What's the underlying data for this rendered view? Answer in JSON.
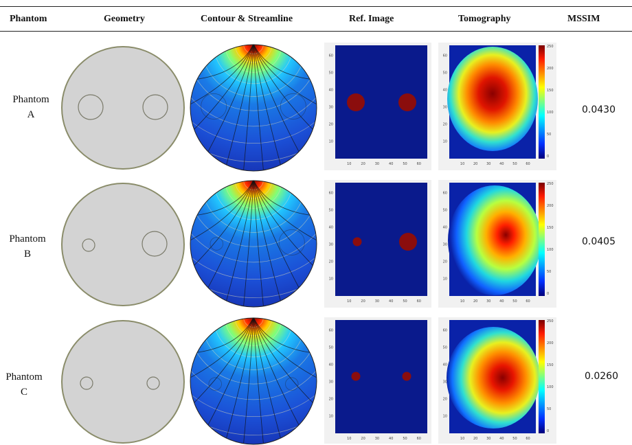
{
  "table": {
    "headers": [
      "Phantom",
      "Geometry",
      "Contour & Streamline",
      "Ref. Image",
      "Tomography",
      "MSSIM"
    ],
    "rows": [
      {
        "phantom_line1": "Phantom",
        "phantom_line2": "A",
        "mssim": "0.0430"
      },
      {
        "phantom_line1": "Phantom",
        "phantom_line2": "B",
        "mssim": "0.0405"
      },
      {
        "phantom_line1": "Phantom",
        "phantom_line2": "C",
        "mssim": "0.0260"
      }
    ]
  },
  "plot_axes": {
    "x_ticks": [
      "10",
      "20",
      "30",
      "40",
      "50",
      "60"
    ],
    "y_ticks": [
      "60",
      "50",
      "40",
      "30",
      "20",
      "10"
    ],
    "colorbar_ticks": [
      "250",
      "200",
      "150",
      "100",
      "50",
      "0"
    ]
  },
  "colors": {
    "geometry_fill": "#d3d3d3",
    "geometry_stroke": "#8a8c6a",
    "field_bg": "#0a1a8c",
    "inclusion": "#8b0d0d"
  }
}
